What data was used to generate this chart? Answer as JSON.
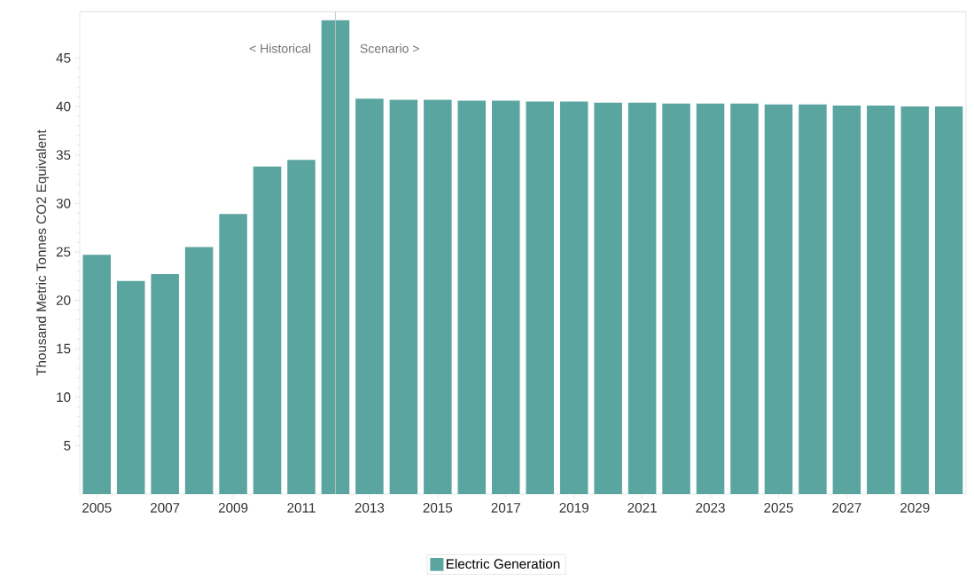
{
  "chart_data": {
    "type": "bar",
    "ylabel": "Thousand Metric Tonnes CO2 Equivalent",
    "x": [
      2005,
      2006,
      2007,
      2008,
      2009,
      2010,
      2011,
      2012,
      2013,
      2014,
      2015,
      2016,
      2017,
      2018,
      2019,
      2020,
      2021,
      2022,
      2023,
      2024,
      2025,
      2026,
      2027,
      2028,
      2029,
      2030
    ],
    "series": [
      {
        "name": "Electric Generation",
        "color": "#5ba5a0",
        "values": [
          24.7,
          22.0,
          22.7,
          25.5,
          28.9,
          33.8,
          34.5,
          48.9,
          40.8,
          40.7,
          40.7,
          40.6,
          40.6,
          40.5,
          40.5,
          40.4,
          40.4,
          40.3,
          40.3,
          40.3,
          40.2,
          40.2,
          40.1,
          40.1,
          40.0,
          40.0
        ]
      }
    ],
    "xlim": [
      2004.5,
      2030.5
    ],
    "xticks": [
      2005,
      2007,
      2009,
      2011,
      2013,
      2015,
      2017,
      2019,
      2021,
      2023,
      2025,
      2027,
      2029
    ],
    "ylim": [
      0,
      49.8
    ],
    "yticks": [
      5,
      10,
      15,
      20,
      25,
      30,
      35,
      40,
      45
    ],
    "ref_lines": [
      {
        "axis": "x",
        "value": 2012,
        "color": "#b8c8c6"
      }
    ],
    "annotations": [
      {
        "text": "< Historical",
        "x": 2012,
        "y": 46
      },
      {
        "text": "Scenario >",
        "x": 2012,
        "y": 46
      }
    ],
    "grid": false,
    "legend": "bottom"
  }
}
